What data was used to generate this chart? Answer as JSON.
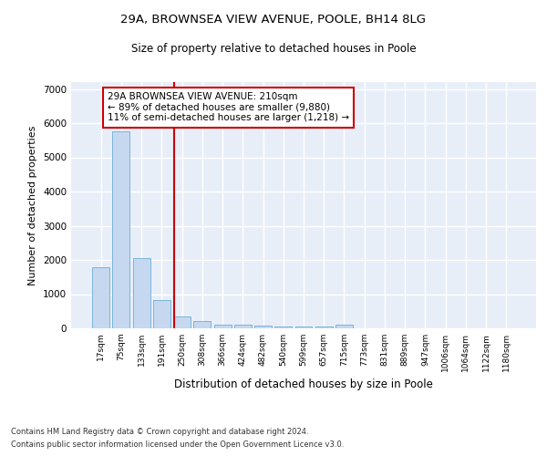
{
  "title1": "29A, BROWNSEA VIEW AVENUE, POOLE, BH14 8LG",
  "title2": "Size of property relative to detached houses in Poole",
  "xlabel": "Distribution of detached houses by size in Poole",
  "ylabel": "Number of detached properties",
  "bar_labels": [
    "17sqm",
    "75sqm",
    "133sqm",
    "191sqm",
    "250sqm",
    "308sqm",
    "366sqm",
    "424sqm",
    "482sqm",
    "540sqm",
    "599sqm",
    "657sqm",
    "715sqm",
    "773sqm",
    "831sqm",
    "889sqm",
    "947sqm",
    "1006sqm",
    "1064sqm",
    "1122sqm",
    "1180sqm"
  ],
  "bar_values": [
    1780,
    5750,
    2050,
    820,
    360,
    220,
    115,
    105,
    80,
    60,
    55,
    50,
    95,
    0,
    0,
    0,
    0,
    0,
    0,
    0,
    0
  ],
  "bar_color": "#c5d8f0",
  "bar_edgecolor": "#6baed6",
  "bg_color": "#e8eef8",
  "grid_color": "#ffffff",
  "vline_x": 3.62,
  "vline_color": "#cc0000",
  "annotation_text": "29A BROWNSEA VIEW AVENUE: 210sqm\n← 89% of detached houses are smaller (9,880)\n11% of semi-detached houses are larger (1,218) →",
  "annotation_box_color": "#ffffff",
  "annotation_box_edgecolor": "#cc0000",
  "ylim": [
    0,
    7200
  ],
  "yticks": [
    0,
    1000,
    2000,
    3000,
    4000,
    5000,
    6000,
    7000
  ],
  "footer1": "Contains HM Land Registry data © Crown copyright and database right 2024.",
  "footer2": "Contains public sector information licensed under the Open Government Licence v3.0."
}
